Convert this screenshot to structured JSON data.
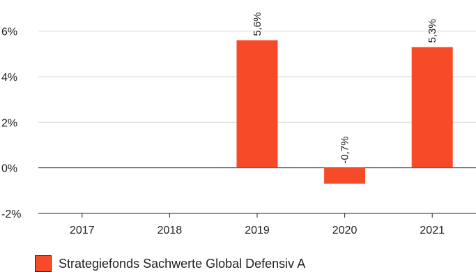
{
  "chart_data": {
    "type": "bar",
    "categories": [
      "2017",
      "2018",
      "2019",
      "2020",
      "2021"
    ],
    "series": [
      {
        "name": "Strategiefonds Sachwerte Global Defensiv A",
        "values": [
          null,
          null,
          5.6,
          -0.7,
          5.3
        ],
        "labels": [
          "",
          "",
          "5,6%",
          "-0,7%",
          "5,3%"
        ]
      }
    ],
    "ylim": [
      -2,
      6.6
    ],
    "y_ticks": [
      -2,
      0,
      2,
      4,
      6
    ],
    "y_tick_labels": [
      "-2%",
      "0%",
      "2%",
      "4%",
      "6%"
    ],
    "grid": true,
    "legend_position": "bottom-left",
    "bar_color": "#f64a28",
    "axis_color": "#222222",
    "grid_color": "#d9d9d9"
  }
}
